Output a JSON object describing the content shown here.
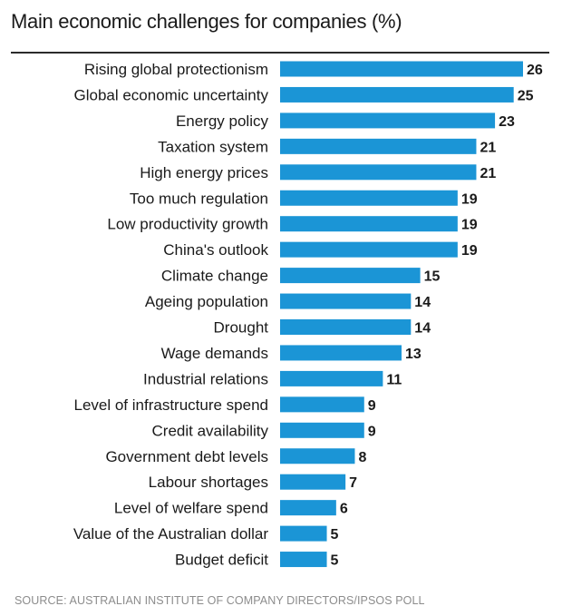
{
  "chart_data": {
    "type": "bar",
    "orientation": "horizontal",
    "title": "Main economic challenges for companies (%)",
    "categories": [
      "Rising global protectionism",
      "Global economic uncertainty",
      "Energy policy",
      "Taxation system",
      "High energy prices",
      "Too much regulation",
      "Low productivity growth",
      "China's outlook",
      "Climate change",
      "Ageing population",
      "Drought",
      "Wage demands",
      "Industrial relations",
      "Level of infrastructure spend",
      "Credit availability",
      "Government debt levels",
      "Labour shortages",
      "Level of welfare spend",
      "Value of the Australian dollar",
      "Budget deficit"
    ],
    "values": [
      26,
      25,
      23,
      21,
      21,
      19,
      19,
      19,
      15,
      14,
      14,
      13,
      11,
      9,
      9,
      8,
      7,
      6,
      5,
      5
    ],
    "xlim": [
      0,
      26
    ],
    "grid": false,
    "bar_color": "#1b95d6",
    "data_labels": true
  },
  "source": "SOURCE: AUSTRALIAN INSTITUTE OF COMPANY DIRECTORS/IPSOS POLL"
}
